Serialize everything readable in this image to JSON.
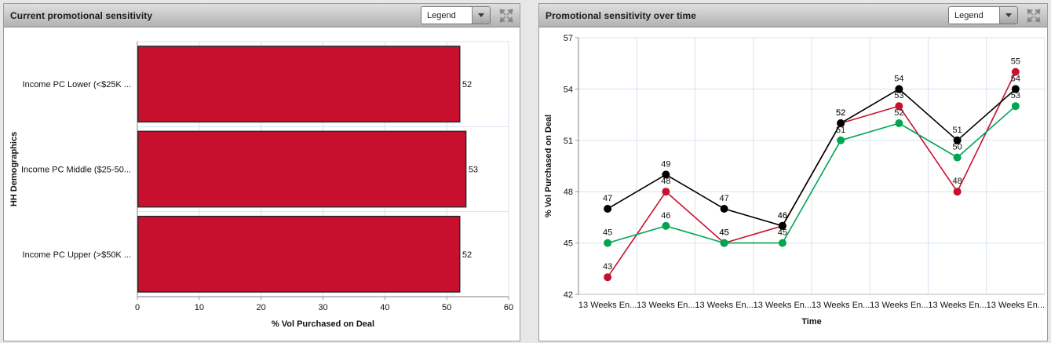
{
  "panels": [
    {
      "title": "Current promotional sensitivity",
      "legend_label": "Legend"
    },
    {
      "title": "Promotional sensitivity over time",
      "legend_label": "Legend"
    }
  ],
  "chart_data": [
    {
      "type": "bar",
      "orientation": "horizontal",
      "title": "Current promotional sensitivity",
      "categories": [
        "Income PC Lower (<$25K ...",
        "Income PC Middle ($25-50...",
        "Income PC Upper (>$50K ..."
      ],
      "values": [
        52,
        53,
        52
      ],
      "value_labels": [
        52,
        53,
        52
      ],
      "xlabel": "% Vol Purchased on Deal",
      "ylabel": "HH Demographics",
      "xlim": [
        0,
        60
      ],
      "xticks": [
        0,
        10,
        20,
        30,
        40,
        50,
        60
      ],
      "bar_color": "#c8102e",
      "bar_border_color": "#2b2b2b",
      "grid": true,
      "grid_color": "#d8e2ef",
      "axis_color": "#999999",
      "legend_position": "collapsed-dropdown"
    },
    {
      "type": "line",
      "title": "Promotional sensitivity over time",
      "categories": [
        "13 Weeks En...",
        "13 Weeks En...",
        "13 Weeks En...",
        "13 Weeks En...",
        "13 Weeks En...",
        "13 Weeks En...",
        "13 Weeks En...",
        "13 Weeks En..."
      ],
      "series": [
        {
          "name": "black series",
          "color": "#000000",
          "values": [
            47,
            49,
            47,
            46,
            52,
            54,
            51,
            54
          ]
        },
        {
          "name": "red series",
          "color": "#c8102e",
          "values": [
            43,
            48,
            45,
            46,
            52,
            53,
            48,
            55
          ]
        },
        {
          "name": "green series",
          "color": "#00a551",
          "values": [
            45,
            46,
            45,
            45,
            51,
            52,
            50,
            53
          ]
        }
      ],
      "xlabel": "Time",
      "ylabel": "% Vol Purchased on Deal",
      "ylim": [
        42,
        57
      ],
      "yticks": [
        42,
        45,
        48,
        51,
        54,
        57
      ],
      "grid": true,
      "grid_color": "#d8e2ef",
      "axis_color": "#999999",
      "value_labels": true,
      "legend_position": "collapsed-dropdown"
    }
  ],
  "icons": {
    "expand": "expand-arrows-icon",
    "dropdown": "chevron-down-icon"
  }
}
